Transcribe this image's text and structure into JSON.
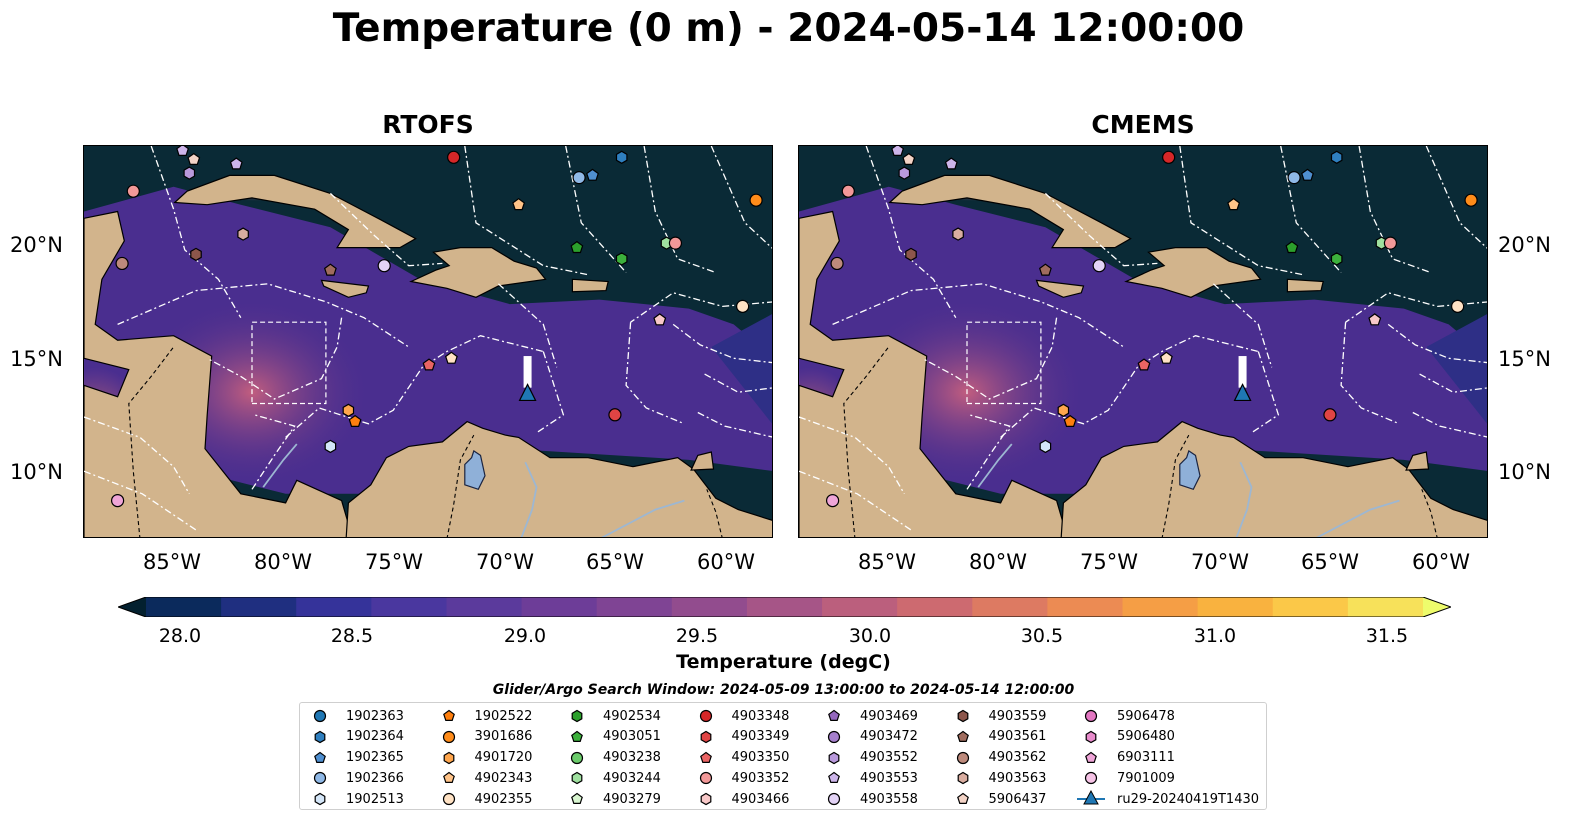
{
  "title": "Temperature (0 m) - 2024-05-14 12:00:00",
  "panels": [
    {
      "title": "RTOFS"
    },
    {
      "title": "CMEMS"
    }
  ],
  "map": {
    "x_ticks": [
      "85°W",
      "80°W",
      "75°W",
      "70°W",
      "65°W",
      "60°W"
    ],
    "y_ticks": [
      "20°N",
      "15°N",
      "10°N"
    ],
    "colors": {
      "land": "#d2b48c",
      "ocean_deep": "#0a2a36",
      "ocean_mid": "#4a2e8f",
      "ocean_warm": "#e06a55",
      "lake": "#8fb0d8",
      "eez_line": "#ffffff"
    }
  },
  "colorbar": {
    "label": "Temperature (degC)",
    "ticks": [
      "28.0",
      "28.5",
      "29.0",
      "29.5",
      "30.0",
      "30.5",
      "31.0",
      "31.5"
    ],
    "colors": [
      "#03202f",
      "#0b2a5c",
      "#1f2f80",
      "#35339a",
      "#4a379f",
      "#5b3a9c",
      "#6d3d98",
      "#7f4494",
      "#924c8e",
      "#a65587",
      "#bb5f7d",
      "#cd6a70",
      "#dd7a62",
      "#ec8b53",
      "#f59e45",
      "#f9b23f",
      "#fbc848",
      "#f7e15a",
      "#eefc6c"
    ]
  },
  "search_window": "Glider/Argo Search Window: 2024-05-09 13:00:00 to 2024-05-14 12:00:00",
  "legend": [
    {
      "label": "1902363",
      "marker": "circle",
      "color": "#1f77b4"
    },
    {
      "label": "1902364",
      "marker": "hexagon",
      "color": "#2f7fbf"
    },
    {
      "label": "1902365",
      "marker": "pentagon",
      "color": "#4f8fd0"
    },
    {
      "label": "1902366",
      "marker": "circle",
      "color": "#8fb8e6"
    },
    {
      "label": "1902513",
      "marker": "hexagon",
      "color": "#d4e6f8"
    },
    {
      "label": "1902522",
      "marker": "pentagon",
      "color": "#ff7f0e"
    },
    {
      "label": "3901686",
      "marker": "circle",
      "color": "#ff8c1a"
    },
    {
      "label": "4901720",
      "marker": "hexagon",
      "color": "#ffa64d"
    },
    {
      "label": "4902343",
      "marker": "pentagon",
      "color": "#ffc388"
    },
    {
      "label": "4902355",
      "marker": "circle",
      "color": "#ffe2c4"
    },
    {
      "label": "4902534",
      "marker": "hexagon",
      "color": "#2ca02c"
    },
    {
      "label": "4903051",
      "marker": "pentagon",
      "color": "#3cb03c"
    },
    {
      "label": "4903238",
      "marker": "circle",
      "color": "#6acb6a"
    },
    {
      "label": "4903244",
      "marker": "hexagon",
      "color": "#9fe09f"
    },
    {
      "label": "4903279",
      "marker": "pentagon",
      "color": "#d8f5d0"
    },
    {
      "label": "4903348",
      "marker": "circle",
      "color": "#d62728"
    },
    {
      "label": "4903349",
      "marker": "hexagon",
      "color": "#e04444"
    },
    {
      "label": "4903350",
      "marker": "pentagon",
      "color": "#ea6464"
    },
    {
      "label": "4903352",
      "marker": "circle",
      "color": "#f29898"
    },
    {
      "label": "4903466",
      "marker": "hexagon",
      "color": "#f8c8c8"
    },
    {
      "label": "4903469",
      "marker": "pentagon",
      "color": "#9467bd"
    },
    {
      "label": "4903472",
      "marker": "circle",
      "color": "#a57fcc"
    },
    {
      "label": "4903552",
      "marker": "hexagon",
      "color": "#b999dc"
    },
    {
      "label": "4903553",
      "marker": "pentagon",
      "color": "#cdb5ea"
    },
    {
      "label": "4903558",
      "marker": "circle",
      "color": "#e3d3f6"
    },
    {
      "label": "4903559",
      "marker": "hexagon",
      "color": "#8c564b"
    },
    {
      "label": "4903561",
      "marker": "pentagon",
      "color": "#a06c5e"
    },
    {
      "label": "4903562",
      "marker": "circle",
      "color": "#bd8a7c"
    },
    {
      "label": "4903563",
      "marker": "hexagon",
      "color": "#d9ada0"
    },
    {
      "label": "5906437",
      "marker": "pentagon",
      "color": "#f3d3c6"
    },
    {
      "label": "5906478",
      "marker": "circle",
      "color": "#e377c2"
    },
    {
      "label": "5906480",
      "marker": "hexagon",
      "color": "#e88bcc"
    },
    {
      "label": "6903111",
      "marker": "pentagon",
      "color": "#efa5d8"
    },
    {
      "label": "7901009",
      "marker": "circle",
      "color": "#f6c3e6"
    },
    {
      "label": "ru29-20240419T1430",
      "marker": "triangle-line",
      "color": "#1f77b4"
    }
  ],
  "floats": [
    {
      "lon": -72.5,
      "lat": 23.9,
      "color": "#d62728",
      "marker": "circle"
    },
    {
      "lon": -65.0,
      "lat": 23.9,
      "color": "#2f7fbf",
      "marker": "hexagon"
    },
    {
      "lon": -66.9,
      "lat": 23.0,
      "color": "#8fb8e6",
      "marker": "circle"
    },
    {
      "lon": -66.3,
      "lat": 23.1,
      "color": "#4f8fd0",
      "marker": "pentagon"
    },
    {
      "lon": -59.0,
      "lat": 22.0,
      "color": "#ff8c1a",
      "marker": "circle"
    },
    {
      "lon": -69.6,
      "lat": 21.8,
      "color": "#ffc388",
      "marker": "pentagon"
    },
    {
      "lon": -86.8,
      "lat": 22.4,
      "color": "#f29898",
      "marker": "circle"
    },
    {
      "lon": -84.6,
      "lat": 24.2,
      "color": "#cdb5ea",
      "marker": "pentagon"
    },
    {
      "lon": -84.1,
      "lat": 23.8,
      "color": "#f3d3c6",
      "marker": "pentagon"
    },
    {
      "lon": -84.3,
      "lat": 23.2,
      "color": "#b999dc",
      "marker": "hexagon"
    },
    {
      "lon": -82.2,
      "lat": 23.6,
      "color": "#cdb5ea",
      "marker": "pentagon"
    },
    {
      "lon": -81.9,
      "lat": 20.5,
      "color": "#d9ada0",
      "marker": "hexagon"
    },
    {
      "lon": -84.0,
      "lat": 19.6,
      "color": "#8c564b",
      "marker": "hexagon"
    },
    {
      "lon": -87.3,
      "lat": 19.2,
      "color": "#bd8a7c",
      "marker": "circle"
    },
    {
      "lon": -78.0,
      "lat": 18.9,
      "color": "#a06c5e",
      "marker": "pentagon"
    },
    {
      "lon": -75.6,
      "lat": 19.1,
      "color": "#e3d3f6",
      "marker": "circle"
    },
    {
      "lon": -67.0,
      "lat": 19.9,
      "color": "#2ca02c",
      "marker": "pentagon"
    },
    {
      "lon": -65.0,
      "lat": 19.4,
      "color": "#3cb03c",
      "marker": "hexagon"
    },
    {
      "lon": -63.0,
      "lat": 20.1,
      "color": "#9fe09f",
      "marker": "hexagon"
    },
    {
      "lon": -62.6,
      "lat": 20.1,
      "color": "#f29898",
      "marker": "circle"
    },
    {
      "lon": -59.6,
      "lat": 17.3,
      "color": "#ffe2c4",
      "marker": "circle"
    },
    {
      "lon": -63.3,
      "lat": 16.7,
      "color": "#f8c8c8",
      "marker": "pentagon"
    },
    {
      "lon": -73.6,
      "lat": 14.7,
      "color": "#ea6464",
      "marker": "pentagon"
    },
    {
      "lon": -72.6,
      "lat": 15.0,
      "color": "#ffe2c4",
      "marker": "pentagon"
    },
    {
      "lon": -77.2,
      "lat": 12.7,
      "color": "#ffa64d",
      "marker": "hexagon"
    },
    {
      "lon": -76.9,
      "lat": 12.2,
      "color": "#ff7f0e",
      "marker": "pentagon"
    },
    {
      "lon": -78.0,
      "lat": 11.1,
      "color": "#d4e6f8",
      "marker": "hexagon"
    },
    {
      "lon": -65.3,
      "lat": 12.5,
      "color": "#e04444",
      "marker": "circle"
    },
    {
      "lon": -87.5,
      "lat": 8.7,
      "color": "#efa5d8",
      "marker": "circle"
    }
  ],
  "glider": {
    "lon": -69.2,
    "lat": 13.4,
    "color": "#1f77b4"
  }
}
